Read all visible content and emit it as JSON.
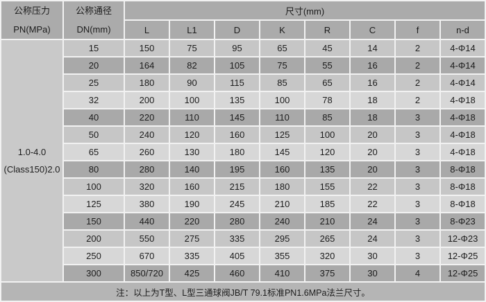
{
  "table": {
    "header": {
      "pressure_col_line1": "公称压力",
      "pressure_col_line2": "PN(MPa)",
      "dn_col_line1": "公称通径",
      "dn_col_line2": "DN(mm)",
      "size_group": "尺寸(mm)",
      "dim_columns": [
        "L",
        "L1",
        "D",
        "K",
        "R",
        "C",
        "f",
        "n-d"
      ]
    },
    "pressure_cell": {
      "line1": "1.0-4.0",
      "line2": "(Class150)2.0"
    },
    "rows": [
      {
        "dn": "15",
        "values": [
          "150",
          "75",
          "95",
          "65",
          "45",
          "14",
          "2",
          "4-Φ14"
        ],
        "shade": "m"
      },
      {
        "dn": "20",
        "values": [
          "164",
          "82",
          "105",
          "75",
          "55",
          "16",
          "2",
          "4-Φ14"
        ],
        "shade": "d"
      },
      {
        "dn": "25",
        "values": [
          "180",
          "90",
          "115",
          "85",
          "65",
          "16",
          "2",
          "4-Φ14"
        ],
        "shade": "m"
      },
      {
        "dn": "32",
        "values": [
          "200",
          "100",
          "135",
          "100",
          "78",
          "18",
          "2",
          "4-Φ18"
        ],
        "shade": "l"
      },
      {
        "dn": "40",
        "values": [
          "220",
          "110",
          "145",
          "110",
          "85",
          "18",
          "3",
          "4-Φ18"
        ],
        "shade": "d"
      },
      {
        "dn": "50",
        "values": [
          "240",
          "120",
          "160",
          "125",
          "100",
          "20",
          "3",
          "4-Φ18"
        ],
        "shade": "m"
      },
      {
        "dn": "65",
        "values": [
          "260",
          "130",
          "180",
          "145",
          "120",
          "20",
          "3",
          "4-Φ18"
        ],
        "shade": "l"
      },
      {
        "dn": "80",
        "values": [
          "280",
          "140",
          "195",
          "160",
          "135",
          "20",
          "3",
          "8-Φ18"
        ],
        "shade": "d"
      },
      {
        "dn": "100",
        "values": [
          "320",
          "160",
          "215",
          "180",
          "155",
          "22",
          "3",
          "8-Φ18"
        ],
        "shade": "m"
      },
      {
        "dn": "125",
        "values": [
          "380",
          "190",
          "245",
          "210",
          "185",
          "22",
          "3",
          "8-Φ18"
        ],
        "shade": "l"
      },
      {
        "dn": "150",
        "values": [
          "440",
          "220",
          "280",
          "240",
          "210",
          "24",
          "3",
          "8-Φ23"
        ],
        "shade": "d"
      },
      {
        "dn": "200",
        "values": [
          "550",
          "275",
          "335",
          "295",
          "265",
          "24",
          "3",
          "12-Φ23"
        ],
        "shade": "m"
      },
      {
        "dn": "250",
        "values": [
          "670",
          "335",
          "405",
          "355",
          "320",
          "30",
          "3",
          "12-Φ25"
        ],
        "shade": "l"
      },
      {
        "dn": "300",
        "values": [
          "850/720",
          "425",
          "460",
          "410",
          "375",
          "30",
          "4",
          "12-Φ25"
        ],
        "shade": "d"
      }
    ],
    "note": "注：以上为T型、L型三通球阀JB/T 79.1标准PN1.6MPa法兰尺寸。"
  },
  "colors": {
    "header-bg": "#ababab",
    "row-light": "#d7d7d7",
    "row-mid": "#c6c6c6",
    "row-dark": "#a9a9a9",
    "pressure-bg": "#c9c9c9",
    "note-bg": "#b5b5b5",
    "border": "#f2f2f2",
    "text": "#1c1c1c"
  }
}
